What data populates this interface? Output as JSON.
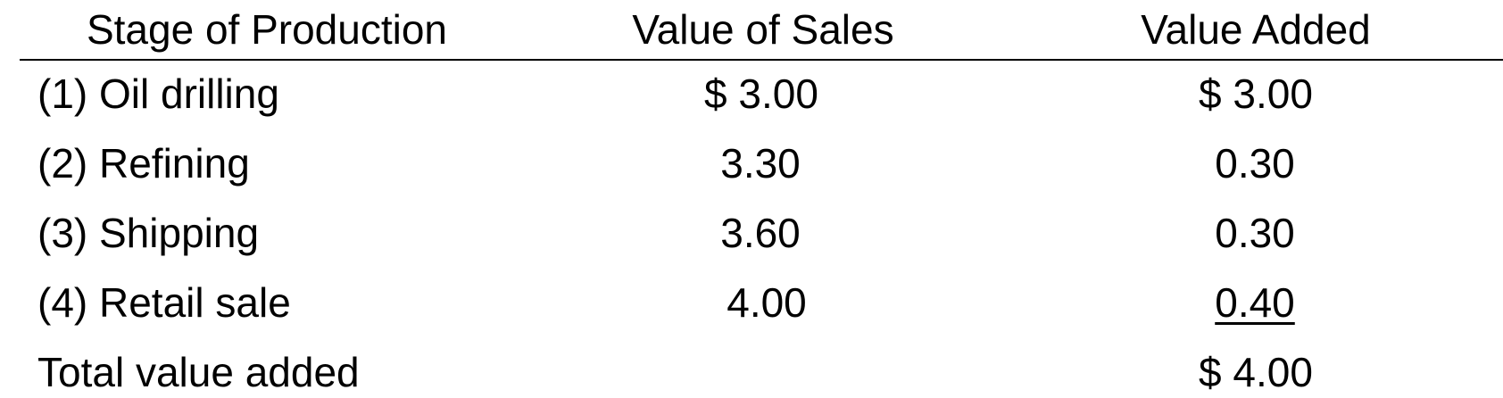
{
  "headers": {
    "stage": "Stage of Production",
    "sales": "Value of Sales",
    "added": "Value Added"
  },
  "rows": [
    {
      "stage": "(1) Oil drilling",
      "sales": "$ 3.00",
      "added": "$ 3.00"
    },
    {
      "stage": "(2) Refining",
      "sales": "3.30",
      "added": "0.30"
    },
    {
      "stage": "(3) Shipping",
      "sales": "3.60",
      "added": "0.30"
    },
    {
      "stage": "(4) Retail sale",
      "sales": "4.00",
      "added": "0.40"
    }
  ],
  "total": {
    "label": "Total value added",
    "added": "$ 4.00"
  }
}
